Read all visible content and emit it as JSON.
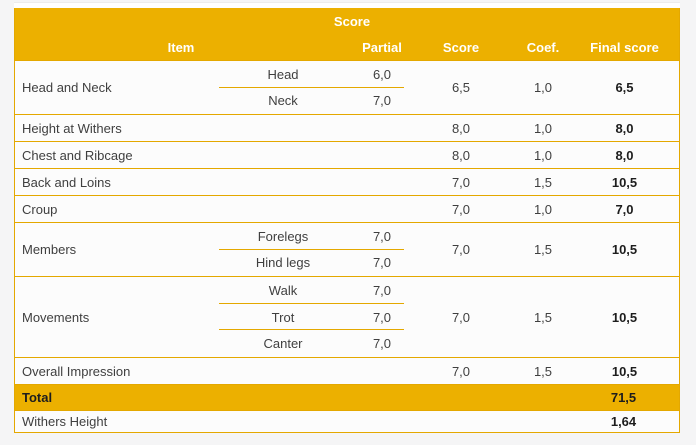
{
  "colors": {
    "gold": "#ECB000",
    "gold_border": "#E4A800",
    "row_background": "#FCFCFC",
    "page_background": "#F5F5F6",
    "body_text": "#3F3F3F",
    "bold_text": "#1D1D1D",
    "header_text": "#FFFFFF"
  },
  "table": {
    "header": {
      "group_label": "Score",
      "columns": [
        "Item",
        "Partial",
        "Score",
        "Coef.",
        "Final score"
      ]
    },
    "rows": [
      {
        "item": "Head and Neck",
        "partials": [
          {
            "label": "Head",
            "value": "6,0"
          },
          {
            "label": "Neck",
            "value": "7,0"
          }
        ],
        "score": "6,5",
        "coef": "1,0",
        "final": "6,5"
      },
      {
        "item": "Height at Withers",
        "score": "8,0",
        "coef": "1,0",
        "final": "8,0"
      },
      {
        "item": "Chest and Ribcage",
        "score": "8,0",
        "coef": "1,0",
        "final": "8,0"
      },
      {
        "item": "Back and Loins",
        "score": "7,0",
        "coef": "1,5",
        "final": "10,5"
      },
      {
        "item": "Croup",
        "score": "7,0",
        "coef": "1,0",
        "final": "7,0"
      },
      {
        "item": "Members",
        "partials": [
          {
            "label": "Forelegs",
            "value": "7,0"
          },
          {
            "label": "Hind legs",
            "value": "7,0"
          }
        ],
        "score": "7,0",
        "coef": "1,5",
        "final": "10,5"
      },
      {
        "item": "Movements",
        "partials": [
          {
            "label": "Walk",
            "value": "7,0"
          },
          {
            "label": "Trot",
            "value": "7,0"
          },
          {
            "label": "Canter",
            "value": "7,0"
          }
        ],
        "score": "7,0",
        "coef": "1,5",
        "final": "10,5"
      },
      {
        "item": "Overall Impression",
        "score": "7,0",
        "coef": "1,5",
        "final": "10,5"
      }
    ],
    "total": {
      "label": "Total",
      "value": "71,5"
    },
    "withers_height": {
      "label": "Withers Height",
      "value": "1,64"
    }
  }
}
